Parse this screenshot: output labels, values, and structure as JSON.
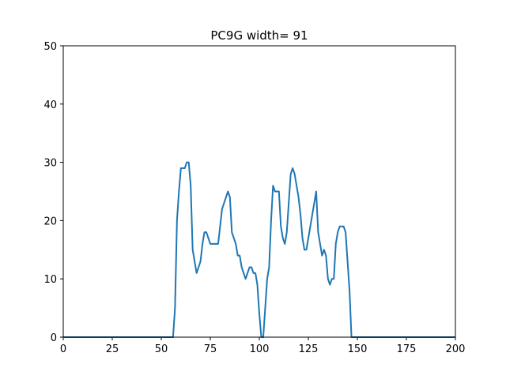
{
  "chart_data": {
    "type": "line",
    "title": "PC9G width= 91",
    "xlabel": "",
    "ylabel": "",
    "xlim": [
      0,
      200
    ],
    "ylim": [
      0,
      50
    ],
    "xticks": [
      0,
      25,
      50,
      75,
      100,
      125,
      150,
      175,
      200
    ],
    "yticks": [
      0,
      10,
      20,
      30,
      40,
      50
    ],
    "grid": false,
    "line_color": "#1f77b4",
    "series": [
      {
        "x": [
          0,
          56,
          57,
          58,
          59,
          60,
          61,
          62,
          63,
          64,
          65,
          66,
          67,
          68,
          69,
          70,
          71,
          72,
          73,
          74,
          75,
          76,
          77,
          78,
          79,
          80,
          81,
          82,
          83,
          84,
          85,
          86,
          87,
          88,
          89,
          90,
          91,
          92,
          93,
          94,
          95,
          96,
          97,
          98,
          99,
          100,
          101,
          102,
          103,
          104,
          105,
          106,
          107,
          108,
          109,
          110,
          111,
          112,
          113,
          114,
          115,
          116,
          117,
          118,
          119,
          120,
          121,
          122,
          123,
          124,
          125,
          126,
          127,
          128,
          129,
          130,
          131,
          132,
          133,
          134,
          135,
          136,
          137,
          138,
          139,
          140,
          141,
          142,
          143,
          144,
          145,
          146,
          147,
          148,
          200
        ],
        "y": [
          0,
          0,
          5,
          20,
          25,
          29,
          29,
          29,
          30,
          30,
          26,
          15,
          13,
          11,
          12,
          13,
          16,
          18,
          18,
          17,
          16,
          16,
          16,
          16,
          16,
          19,
          22,
          23,
          24,
          25,
          24,
          18,
          17,
          16,
          14,
          14,
          12,
          11,
          10,
          11,
          12,
          12,
          11,
          11,
          9,
          4,
          0,
          0,
          5,
          10,
          12,
          20,
          26,
          25,
          25,
          25,
          19,
          17,
          16,
          18,
          23,
          28,
          29,
          28,
          26,
          24,
          21,
          17,
          15,
          15,
          17,
          19,
          21,
          23,
          25,
          18,
          16,
          14,
          15,
          14,
          10,
          9,
          10,
          10,
          16,
          18,
          19,
          19,
          19,
          18,
          13,
          8,
          0,
          0,
          0
        ]
      }
    ]
  }
}
